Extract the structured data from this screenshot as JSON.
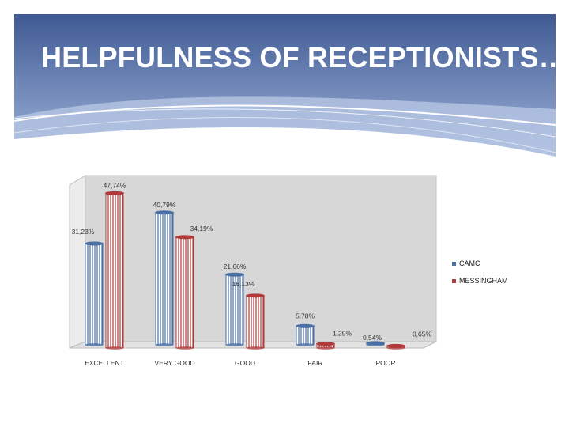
{
  "title": "HELPFULNESS OF RECEPTIONISTS…",
  "colors": {
    "header_top": "#3f5a93",
    "header_bottom": "#8fa6d2",
    "plot_bg": "#d7d7d7",
    "camc": "#4a6fa5",
    "messingham": "#b03a3a"
  },
  "chart_data": {
    "type": "bar",
    "categories": [
      "EXCELLENT",
      "VERY GOOD",
      "GOOD",
      "FAIR",
      "POOR"
    ],
    "series": [
      {
        "name": "CAMC",
        "values": [
          31.23,
          40.79,
          21.66,
          5.78,
          0.54
        ],
        "labels": [
          "31,23%",
          "40,79%",
          "21,66%",
          "5,78%",
          "0,54%"
        ]
      },
      {
        "name": "MESSINGHAM",
        "values": [
          47.74,
          34.19,
          16.13,
          1.29,
          0.65
        ],
        "labels": [
          "47,74%",
          "34,19%",
          "16,13%",
          "1,29%",
          "0,65%"
        ]
      }
    ],
    "ylim": [
      0,
      50
    ],
    "legend_position": "right",
    "grid": false
  }
}
